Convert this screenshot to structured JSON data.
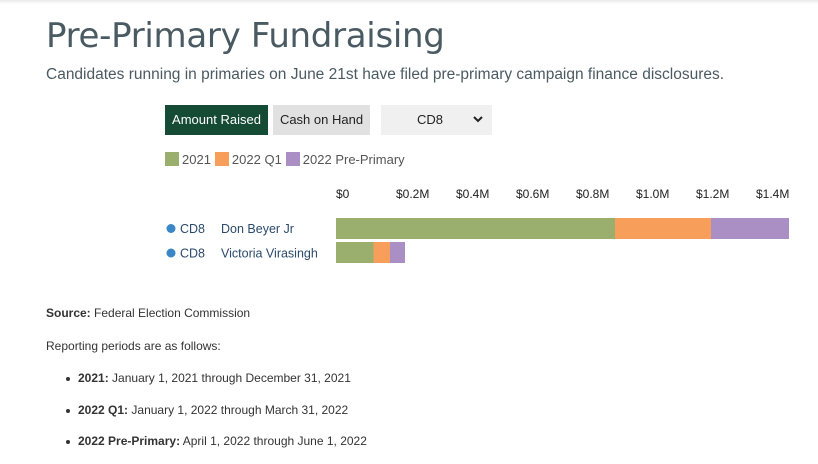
{
  "title": "Pre-Primary Fundraising",
  "subtitle": "Candidates running in primaries on June 21st have filed pre-primary campaign finance disclosures.",
  "controls": {
    "amount_raised": "Amount Raised",
    "cash_on_hand": "Cash on Hand",
    "district_selected": "CD8"
  },
  "legend": [
    "2021",
    "2022 Q1",
    "2022 Pre-Primary"
  ],
  "colors": {
    "2021": "#9aae6e",
    "2022 Q1": "#f79e5a",
    "2022 Pre-Primary": "#a98fc4",
    "dot": "#3b86c6",
    "active_button": "#154a34"
  },
  "chart_data": {
    "type": "bar",
    "orientation": "horizontal",
    "stacked": true,
    "categories": [
      "Don Beyer Jr",
      "Victoria Virasingh"
    ],
    "districts": [
      "CD8",
      "CD8"
    ],
    "series": [
      {
        "name": "2021",
        "values": [
          930000,
          125000
        ]
      },
      {
        "name": "2022 Q1",
        "values": [
          320000,
          55000
        ]
      },
      {
        "name": "2022 Pre-Primary",
        "values": [
          260000,
          50000
        ]
      }
    ],
    "tick_labels": [
      "$0",
      "$0.2M",
      "$0.4M",
      "$0.6M",
      "$0.8M",
      "$1.0M",
      "$1.2M",
      "$1.4M"
    ],
    "tick_values": [
      0,
      200000,
      400000,
      600000,
      800000,
      1000000,
      1200000,
      1400000
    ],
    "xlim": [
      0,
      1500000
    ],
    "legend_position": "top-left",
    "grid": false
  },
  "footer": {
    "source_label": "Source:",
    "source_text": "Federal Election Commission",
    "periods_intro": "Reporting periods are as follows:",
    "periods": [
      {
        "label": "2021:",
        "text": "January 1, 2021 through December 31, 2021"
      },
      {
        "label": "2022 Q1:",
        "text": "January 1, 2022 through March 31, 2022"
      },
      {
        "label": "2022 Pre-Primary:",
        "text": "April 1, 2022 through June 1, 2022"
      }
    ]
  }
}
